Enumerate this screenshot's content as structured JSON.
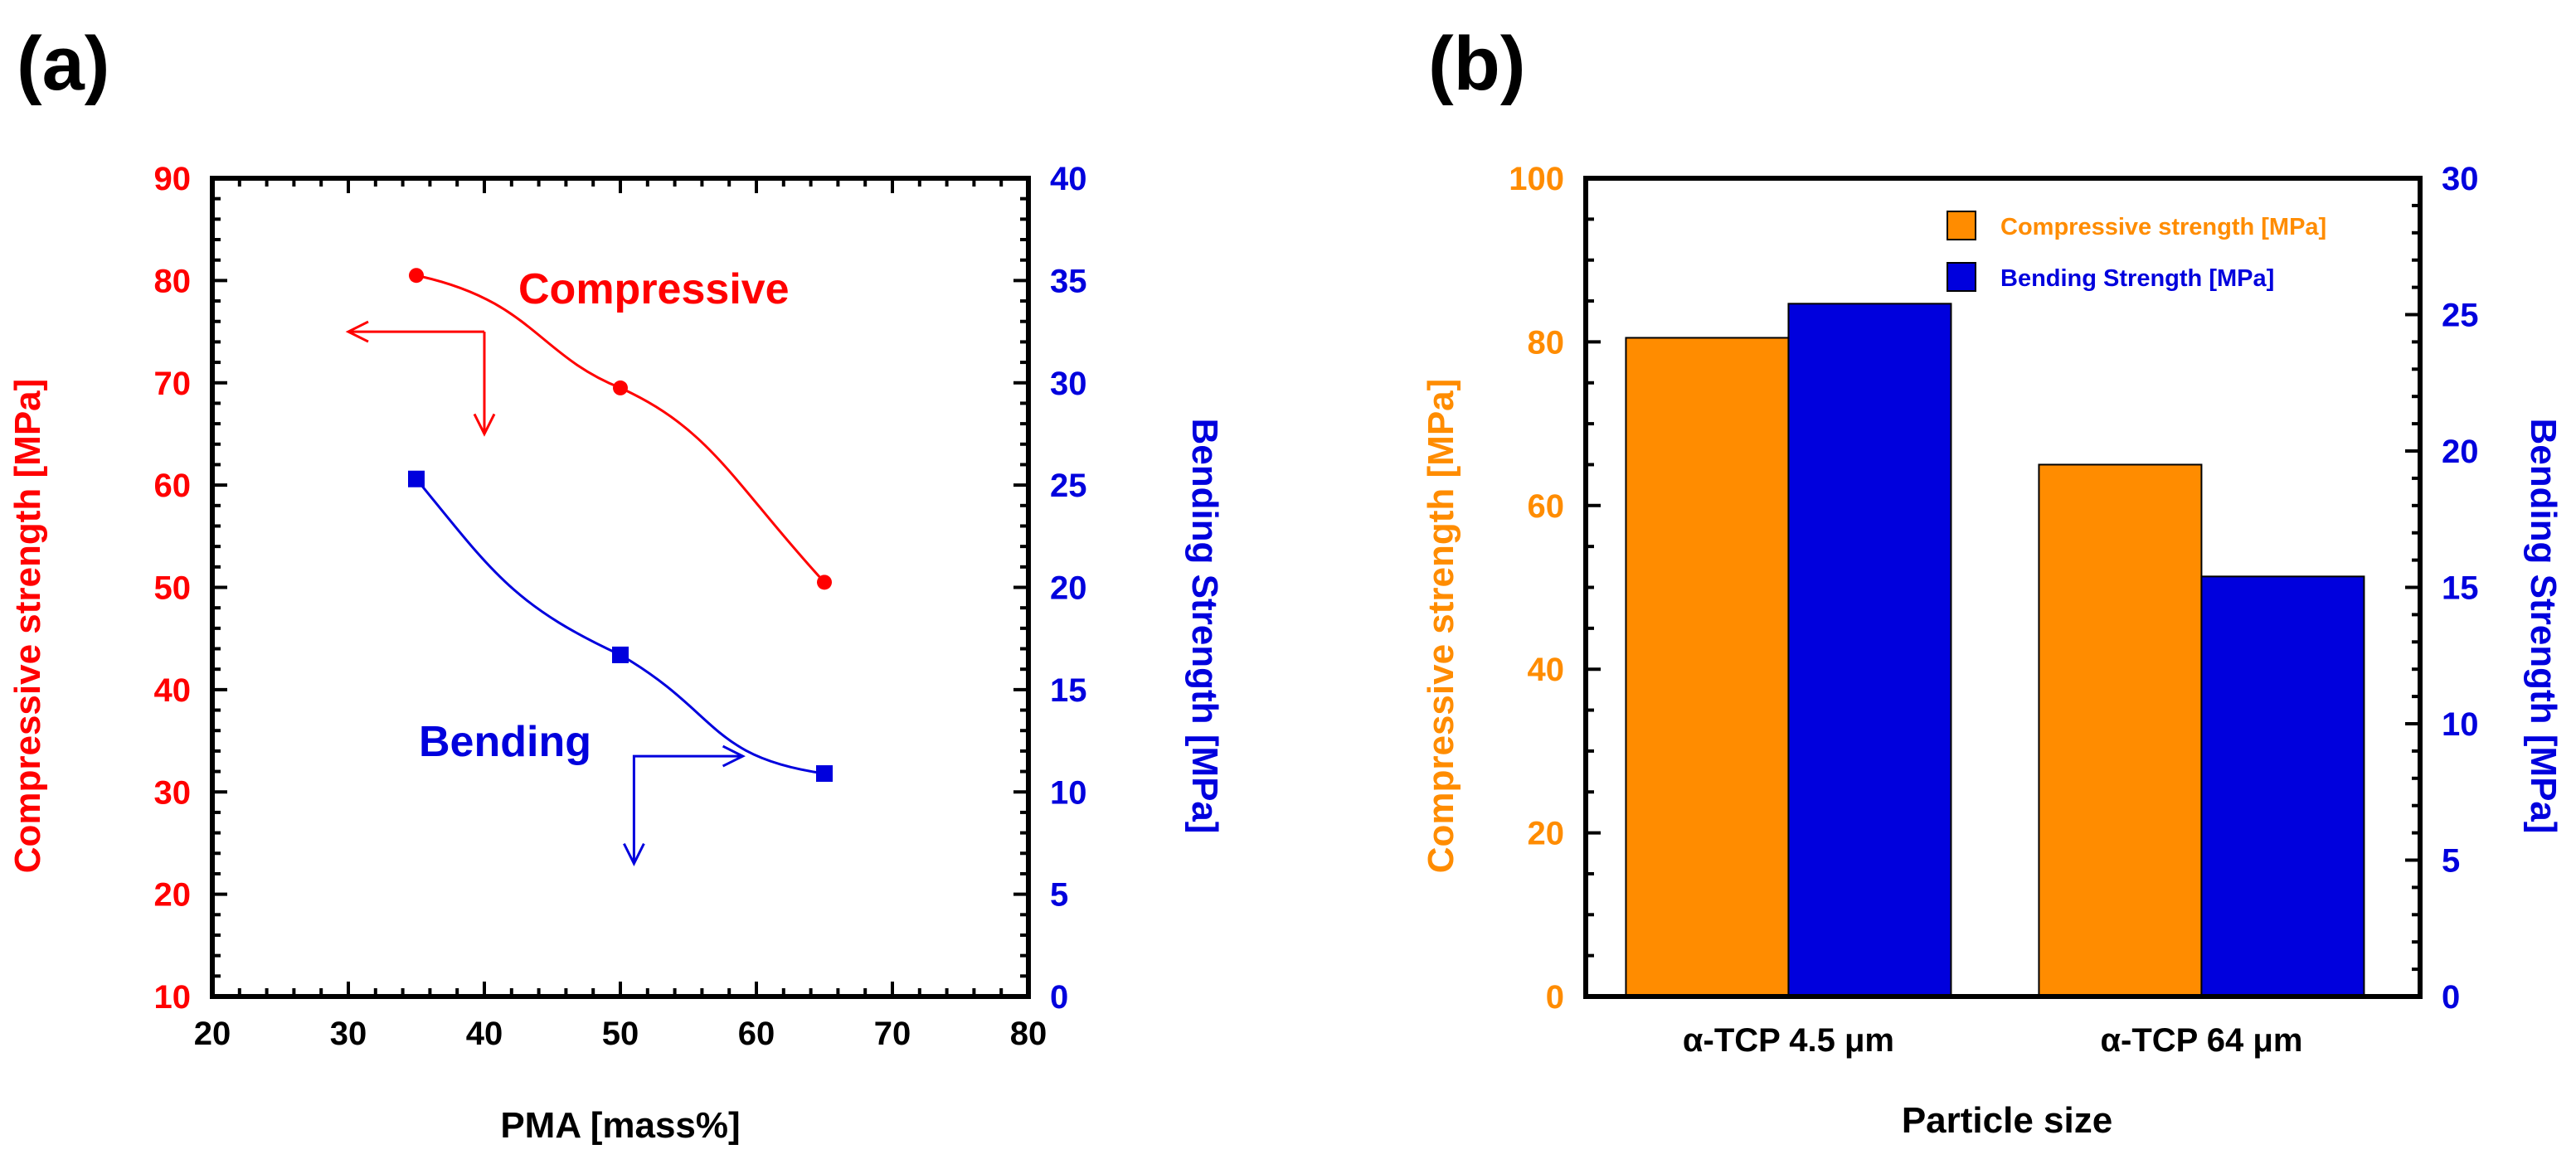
{
  "colors": {
    "red": "#ff0000",
    "blue": "#0000dd",
    "orange": "#ff8c00",
    "bar_blue": "#0000dd",
    "black": "#000000"
  },
  "chart_data": [
    {
      "panel_label": "(a)",
      "type": "line",
      "xlabel": "PMA [mass%]",
      "ylabel_left": "Compressive strength [MPa]",
      "ylabel_right": "Bending Strength [MPa]",
      "xlim": [
        20,
        80
      ],
      "ylim_left": [
        10,
        90
      ],
      "ylim_right": [
        0,
        40
      ],
      "x_ticks": [
        "20",
        "30",
        "40",
        "50",
        "60",
        "70",
        "80"
      ],
      "y_left_ticks": [
        "10",
        "20",
        "30",
        "40",
        "50",
        "60",
        "70",
        "80",
        "90"
      ],
      "y_right_ticks": [
        "0",
        "5",
        "10",
        "15",
        "20",
        "25",
        "30",
        "35",
        "40"
      ],
      "series": [
        {
          "name": "Compressive",
          "axis": "left",
          "marker": "circle",
          "color": "#ff0000",
          "x": [
            35,
            50,
            65
          ],
          "y": [
            80.5,
            69.5,
            50.5
          ]
        },
        {
          "name": "Bending",
          "axis": "right",
          "marker": "square",
          "color": "#0000dd",
          "x": [
            35,
            50,
            65
          ],
          "y": [
            25.3,
            16.7,
            10.9
          ]
        }
      ],
      "annotations": [
        "Compressive",
        "Bending"
      ]
    },
    {
      "panel_label": "(b)",
      "type": "bar",
      "xlabel": "Particle size",
      "ylabel_left": "Compressive strength [MPa]",
      "ylabel_right": "Bending Strength [MPa]",
      "categories": [
        "α-TCP 4.5 μm",
        "α-TCP 64 μm"
      ],
      "ylim_left": [
        0,
        100
      ],
      "ylim_right": [
        0,
        30
      ],
      "y_left_ticks": [
        "0",
        "20",
        "40",
        "60",
        "80",
        "100"
      ],
      "y_right_ticks": [
        "0",
        "5",
        "10",
        "15",
        "20",
        "25",
        "30"
      ],
      "series": [
        {
          "name": "Compressive strength [MPa]",
          "axis": "left",
          "color": "#ff8c00",
          "values": [
            80.5,
            65
          ]
        },
        {
          "name": "Bending Strength [MPa]",
          "axis": "right",
          "color": "#0000dd",
          "values": [
            25.4,
            15.4
          ]
        }
      ],
      "legend_position": "top-right"
    }
  ]
}
